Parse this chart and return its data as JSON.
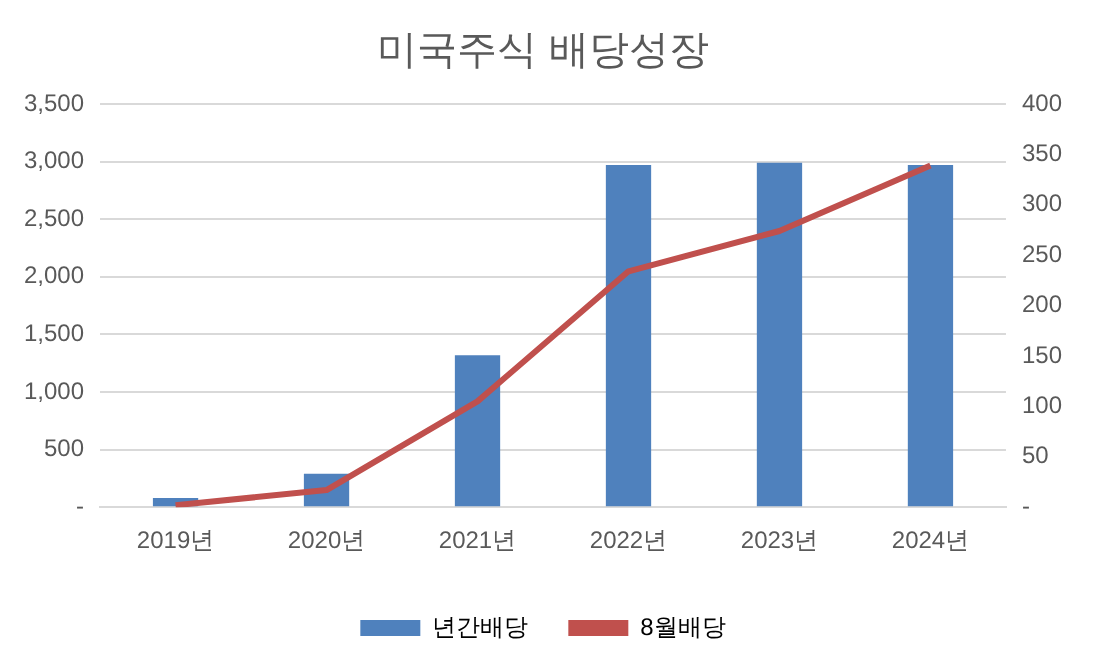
{
  "chart_data": {
    "type": "bar",
    "title": "미국주식 배당성장",
    "categories": [
      "2019년",
      "2020년",
      "2021년",
      "2022년",
      "2023년",
      "2024년"
    ],
    "series": [
      {
        "name": "년간배당",
        "color": "#4f81bd",
        "values": [
          80,
          290,
          1320,
          2970,
          2990,
          2970
        ]
      },
      {
        "name": "8월배당",
        "type": "line",
        "axis": "y2",
        "color": "#c0504d",
        "values": [
          2,
          17,
          105,
          234,
          274,
          339
        ]
      }
    ],
    "ylim": [
      0,
      3500
    ],
    "yticks": [
      {
        "value": 0,
        "label": "-"
      },
      500,
      {
        "value": 1000,
        "label": "1,000"
      },
      {
        "value": 1500,
        "label": "1,500"
      },
      {
        "value": 2000,
        "label": "2,000"
      },
      {
        "value": 2500,
        "label": "2,500"
      },
      {
        "value": 3000,
        "label": "3,000"
      },
      {
        "value": 3500,
        "label": "3,500"
      }
    ],
    "y2lim": [
      0,
      400
    ],
    "y2ticks": [
      {
        "value": 0,
        "label": "-"
      },
      50,
      100,
      150,
      200,
      250,
      300,
      350,
      400
    ],
    "grid": "y",
    "legend": "bottom",
    "marker": "none",
    "line_style": "solid"
  }
}
